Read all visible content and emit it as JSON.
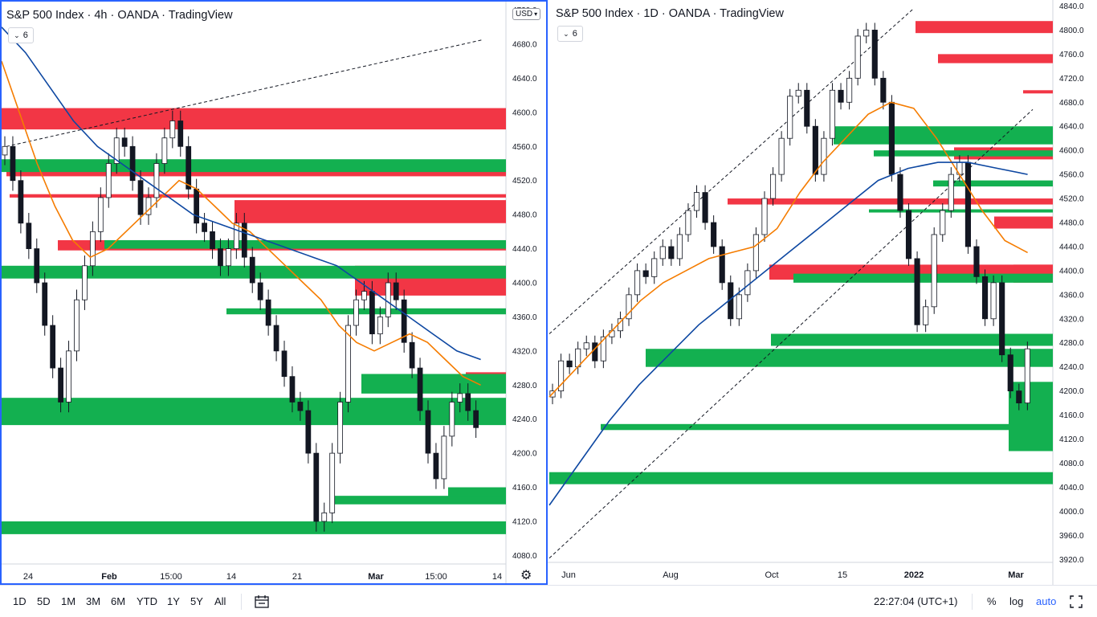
{
  "charts": [
    {
      "title": "S&P 500 Index · 4h · OANDA · TradingView",
      "legend_count": "6",
      "currency": "USD",
      "y_ticks": [
        "4720.0",
        "4680.0",
        "4640.0",
        "4600.0",
        "4560.0",
        "4520.0",
        "4480.0",
        "4440.0",
        "4400.0",
        "4360.0",
        "4320.0",
        "4280.0",
        "4240.0",
        "4200.0",
        "4160.0",
        "4120.0",
        "4080.0"
      ],
      "x_ticks": [
        "24",
        "Feb",
        "15:00",
        "14",
        "21",
        "Mar",
        "15:00",
        "14"
      ]
    },
    {
      "title": "S&P 500 Index · 1D · OANDA · TradingView",
      "legend_count": "6",
      "y_ticks": [
        "4840.0",
        "4800.0",
        "4760.0",
        "4720.0",
        "4680.0",
        "4640.0",
        "4600.0",
        "4560.0",
        "4520.0",
        "4480.0",
        "4440.0",
        "4400.0",
        "4360.0",
        "4320.0",
        "4280.0",
        "4240.0",
        "4200.0",
        "4160.0",
        "4120.0",
        "4080.0",
        "4040.0",
        "4000.0",
        "3960.0",
        "3920.0"
      ],
      "x_ticks": [
        "Jun",
        "Aug",
        "Oct",
        "15",
        "2022",
        "Mar"
      ]
    }
  ],
  "chart_data": [
    {
      "type": "candlestick",
      "title": "S&P 500 Index · 4h · OANDA · TradingView",
      "ylim": [
        4070,
        4730
      ],
      "x_labels": [
        "24",
        "Feb",
        "15:00",
        "14",
        "21",
        "Mar",
        "15:00",
        "14"
      ],
      "ma_fast_color": "#f57c00",
      "ma_slow_color": "#0d47a1",
      "candles_close": [
        4560,
        4520,
        4470,
        4440,
        4400,
        4350,
        4300,
        4260,
        4320,
        4380,
        4420,
        4460,
        4500,
        4540,
        4570,
        4560,
        4520,
        4480,
        4500,
        4540,
        4570,
        4590,
        4560,
        4510,
        4470,
        4460,
        4440,
        4420,
        4440,
        4470,
        4430,
        4400,
        4380,
        4350,
        4320,
        4290,
        4260,
        4250,
        4200,
        4120,
        4130,
        4200,
        4260,
        4350,
        4380,
        4390,
        4340,
        4360,
        4400,
        4380,
        4330,
        4300,
        4250,
        4200,
        4170,
        4220,
        4260,
        4270,
        4250,
        4230
      ],
      "ma_fast": [
        4660,
        4600,
        4540,
        4490,
        4450,
        4430,
        4440,
        4460,
        4480,
        4500,
        4520,
        4510,
        4490,
        4470,
        4460,
        4440,
        4420,
        4400,
        4380,
        4350,
        4330,
        4320,
        4330,
        4340,
        4330,
        4310,
        4290,
        4280
      ],
      "ma_slow": [
        4700,
        4670,
        4630,
        4590,
        4560,
        4540,
        4520,
        4500,
        4480,
        4470,
        4460,
        4450,
        4440,
        4430,
        4420,
        4400,
        4380,
        4360,
        4340,
        4320,
        4310
      ],
      "supply_zones": [
        [
          4580,
          4605
        ],
        [
          4525,
          4540
        ],
        [
          4500,
          4504
        ],
        [
          4470,
          4497
        ],
        [
          4438,
          4450
        ],
        [
          4385,
          4420
        ],
        [
          4287,
          4295
        ]
      ],
      "demand_zones": [
        [
          4250,
          4265
        ],
        [
          4233,
          4258
        ],
        [
          4270,
          4293
        ],
        [
          4363,
          4370
        ],
        [
          4440,
          4450
        ],
        [
          4148,
          4160
        ],
        [
          4140,
          4150
        ],
        [
          4105,
          4120
        ],
        [
          4405,
          4420
        ],
        [
          4530,
          4545
        ]
      ]
    },
    {
      "type": "candlestick",
      "title": "S&P 500 Index · 1D · OANDA · TradingView",
      "ylim": [
        3915,
        4850
      ],
      "x_labels": [
        "Jun",
        "Aug",
        "Oct",
        "15",
        "2022",
        "Mar"
      ],
      "ma_fast_color": "#f57c00",
      "ma_slow_color": "#0d47a1",
      "candles_close": [
        4200,
        4250,
        4240,
        4270,
        4280,
        4250,
        4290,
        4300,
        4320,
        4360,
        4400,
        4390,
        4420,
        4440,
        4420,
        4460,
        4500,
        4530,
        4480,
        4440,
        4380,
        4320,
        4360,
        4400,
        4460,
        4520,
        4560,
        4620,
        4690,
        4700,
        4640,
        4560,
        4620,
        4700,
        4680,
        4720,
        4790,
        4800,
        4720,
        4680,
        4560,
        4500,
        4420,
        4310,
        4340,
        4460,
        4500,
        4560,
        4580,
        4440,
        4390,
        4320,
        4380,
        4260,
        4200,
        4180,
        4270
      ],
      "ma_fast": [
        4190,
        4230,
        4270,
        4310,
        4350,
        4380,
        4400,
        4420,
        4430,
        4440,
        4470,
        4530,
        4580,
        4620,
        4660,
        4680,
        4670,
        4620,
        4560,
        4500,
        4450,
        4430
      ],
      "ma_slow": [
        4010,
        4080,
        4150,
        4210,
        4260,
        4310,
        4350,
        4390,
        4430,
        4470,
        4510,
        4550,
        4570,
        4580,
        4580,
        4570,
        4560
      ],
      "supply_zones": [
        [
          4795,
          4815
        ],
        [
          4745,
          4760
        ],
        [
          4700,
          4700
        ],
        [
          4585,
          4605
        ],
        [
          4470,
          4490
        ],
        [
          4385,
          4410
        ],
        [
          4510,
          4520
        ],
        [
          4380,
          4410
        ]
      ],
      "demand_zones": [
        [
          4240,
          4270
        ],
        [
          4135,
          4145
        ],
        [
          4045,
          4065
        ],
        [
          4275,
          4295
        ],
        [
          4380,
          4395
        ],
        [
          4610,
          4640
        ],
        [
          4500,
          4502
        ],
        [
          4590,
          4600
        ],
        [
          4540,
          4550
        ],
        [
          4200,
          4215
        ],
        [
          4100,
          4215
        ]
      ]
    }
  ],
  "toolbar": {
    "timeframes": [
      "1D",
      "5D",
      "1M",
      "3M",
      "6M",
      "YTD",
      "1Y",
      "5Y",
      "All"
    ],
    "clock": "22:27:04 (UTC+1)",
    "percent": "%",
    "log": "log",
    "auto": "auto"
  },
  "colors": {
    "supply": "#f23645",
    "demand": "#13b050",
    "candle": "#131722",
    "selected_border": "#2962ff"
  },
  "icons": [
    "chevron-down-icon",
    "gear-icon",
    "date-range-icon",
    "fullscreen-icon"
  ]
}
